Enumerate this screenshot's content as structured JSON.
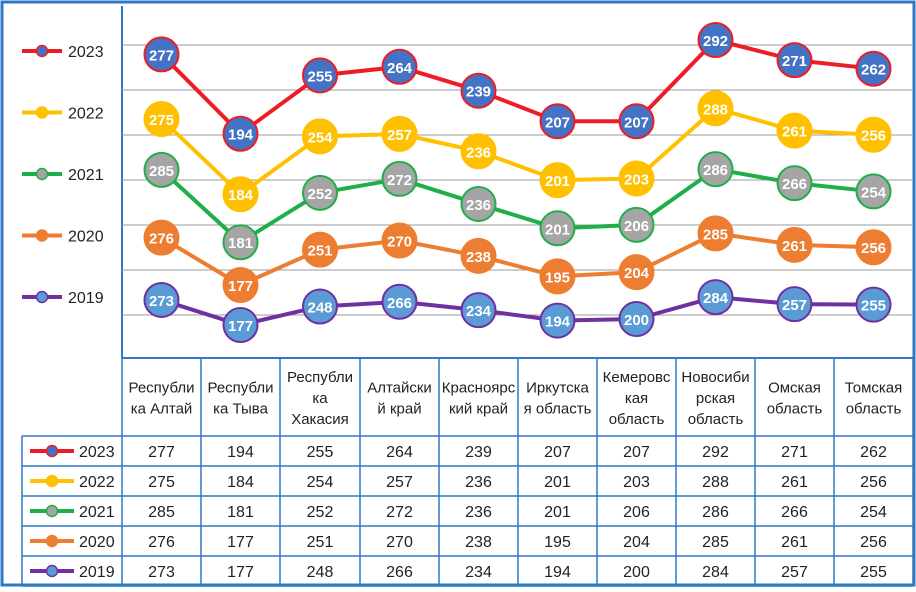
{
  "chart_data": {
    "type": "line",
    "title": "",
    "xlabel": "",
    "ylabel": "",
    "grid": true,
    "legend": "left",
    "categories": [
      [
        "Республи",
        "ка Алтай"
      ],
      [
        "Республи",
        "ка Тыва"
      ],
      [
        "Республи",
        "ка",
        "Хакасия"
      ],
      [
        "Алтайски",
        "й край"
      ],
      [
        "Красноярс",
        "кий край"
      ],
      [
        "Иркутска",
        "я область"
      ],
      [
        "Кемеровс",
        "кая",
        "область"
      ],
      [
        "Новосиби",
        "рская",
        "область"
      ],
      [
        "Омская",
        "область"
      ],
      [
        "Томская",
        "область"
      ]
    ],
    "series": [
      {
        "name": "2023",
        "color": "#ee1c25",
        "marker_color": "#4472c4",
        "values": [
          277,
          194,
          255,
          264,
          239,
          207,
          207,
          292,
          271,
          262
        ]
      },
      {
        "name": "2022",
        "color": "#ffc000",
        "marker_color": "#ffc000",
        "values": [
          275,
          184,
          254,
          257,
          236,
          201,
          203,
          288,
          261,
          256
        ]
      },
      {
        "name": "2021",
        "color": "#1fae48",
        "marker_color": "#a5a5a5",
        "values": [
          285,
          181,
          252,
          272,
          236,
          201,
          206,
          286,
          266,
          254
        ]
      },
      {
        "name": "2020",
        "color": "#ed7d31",
        "marker_color": "#ed7d31",
        "values": [
          276,
          177,
          251,
          270,
          238,
          195,
          204,
          285,
          261,
          256
        ]
      },
      {
        "name": "2019",
        "color": "#7030a0",
        "marker_color": "#5b9bd5",
        "values": [
          273,
          177,
          248,
          266,
          234,
          194,
          200,
          284,
          257,
          255
        ]
      }
    ]
  }
}
